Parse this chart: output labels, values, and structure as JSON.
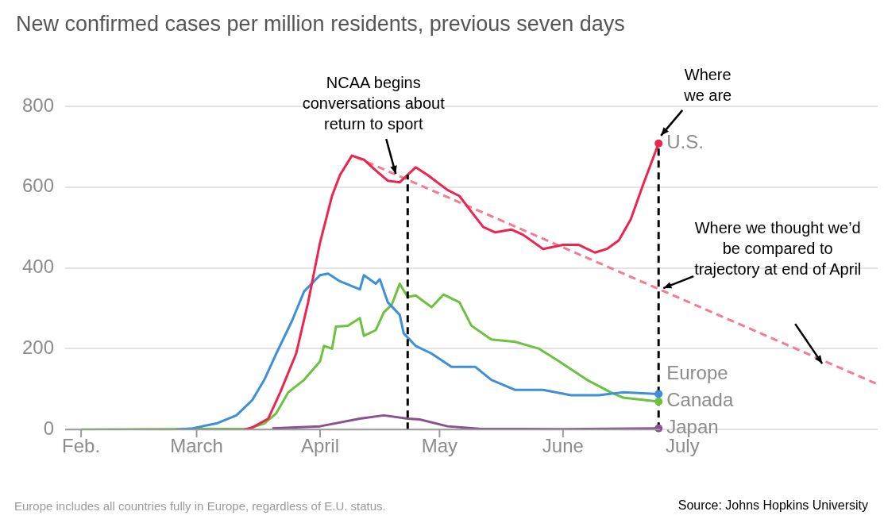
{
  "chart_data": {
    "type": "line",
    "title": "New confirmed cases per million residents, previous seven days",
    "xlim": [
      "--01-28",
      "--08-19"
    ],
    "xticks": [
      {
        "value": "--02-01",
        "label": "Feb."
      },
      {
        "value": "--03-01",
        "label": "March"
      },
      {
        "value": "--04-01",
        "label": "April"
      },
      {
        "value": "--05-01",
        "label": "May"
      },
      {
        "value": "--06-01",
        "label": "June"
      },
      {
        "value": "--07-01",
        "label": "July"
      }
    ],
    "ylim": [
      0,
      800
    ],
    "yticks": [
      0,
      200,
      400,
      600,
      800
    ],
    "grid": "y",
    "legend": false,
    "line_style": "solid",
    "series": [
      {
        "name": "U.S.",
        "color": "#ee2350",
        "x": [
          "--03-13",
          "--03-15",
          "--03-19",
          "--03-22",
          "--03-26",
          "--03-29",
          "--04-01",
          "--04-04",
          "--04-06",
          "--04-09",
          "--04-12",
          "--04-15",
          "--04-18",
          "--04-21",
          "--04-25",
          "--04-28",
          "--05-03",
          "--05-06",
          "--05-09",
          "--05-12",
          "--05-15",
          "--05-19",
          "--05-22",
          "--05-27",
          "--06-01",
          "--06-05",
          "--06-09",
          "--06-12",
          "--06-15",
          "--06-18",
          "--06-21",
          "--06-25"
        ],
        "values": [
          0,
          5,
          27,
          92,
          188,
          315,
          463,
          578,
          630,
          678,
          668,
          641,
          616,
          612,
          649,
          630,
          593,
          578,
          539,
          501,
          488,
          495,
          482,
          447,
          457,
          457,
          438,
          447,
          468,
          520,
          603,
          708
        ]
      },
      {
        "name": "Europe",
        "color": "#3d8fd8",
        "x": [
          "--02-25",
          "--02-29",
          "--03-06",
          "--03-11",
          "--03-15",
          "--03-18",
          "--03-21",
          "--03-25",
          "--03-28",
          "--04-01",
          "--04-03",
          "--04-06",
          "--04-11",
          "--04-12",
          "--04-15",
          "--04-16",
          "--04-18",
          "--04-21",
          "--04-22",
          "--04-25",
          "--04-29",
          "--05-04",
          "--05-10",
          "--05-14",
          "--05-20",
          "--05-27",
          "--06-03",
          "--06-10",
          "--06-16",
          "--06-25"
        ],
        "values": [
          0,
          3,
          15,
          35,
          73,
          123,
          188,
          270,
          342,
          382,
          386,
          367,
          347,
          382,
          361,
          372,
          315,
          284,
          238,
          207,
          188,
          155,
          155,
          123,
          98,
          98,
          85,
          85,
          92,
          88
        ]
      },
      {
        "name": "Canada",
        "color": "#6cc23e",
        "x": [
          "--02-01",
          "--03-14",
          "--03-18",
          "--03-21",
          "--03-24",
          "--03-28",
          "--04-01",
          "--04-02",
          "--04-04",
          "--04-05",
          "--04-08",
          "--04-11",
          "--04-12",
          "--04-15",
          "--04-17",
          "--04-19",
          "--04-21",
          "--04-23",
          "--04-25",
          "--04-29",
          "--05-02",
          "--05-06",
          "--05-09",
          "--05-14",
          "--05-20",
          "--05-26",
          "--05-31",
          "--06-07",
          "--06-13",
          "--06-16",
          "--06-25"
        ],
        "values": [
          0,
          2,
          15,
          40,
          92,
          123,
          169,
          207,
          200,
          255,
          257,
          276,
          232,
          246,
          290,
          309,
          361,
          328,
          332,
          303,
          334,
          315,
          257,
          223,
          217,
          200,
          169,
          123,
          92,
          79,
          69
        ]
      },
      {
        "name": "Japan",
        "color": "#8b4f92",
        "x": [
          "--03-20",
          "--04-01",
          "--04-11",
          "--04-17",
          "--04-23",
          "--04-26",
          "--05-03",
          "--05-11",
          "--06-01",
          "--06-25"
        ],
        "values": [
          3,
          8,
          27,
          35,
          27,
          25,
          8,
          2,
          1,
          3
        ]
      },
      {
        "color": "#f37b92",
        "line_style": "dashed",
        "x": [
          "--04-10",
          "--08-19"
        ],
        "values": [
          674,
          112
        ]
      }
    ],
    "ref_lines": [
      {
        "axis": "x",
        "value": "--04-23",
        "color": "#000000",
        "line_style": "dashed"
      },
      {
        "axis": "x",
        "value": "--06-25",
        "color": "#000000",
        "line_style": "dashed"
      }
    ],
    "annotations": [
      {
        "text": "NCAA begins conversations about return to sport",
        "x": "--04-20",
        "y": 625
      },
      {
        "text": "Where we are",
        "x": "--06-25",
        "y": 708
      },
      {
        "text": "Where we thought we’d be compared to trajectory at end of April",
        "x": "--06-25",
        "y": 344
      },
      "Europe includes all countries fully in Europe, regardless of E.U. status.",
      "Source: Johns Hopkins University"
    ]
  }
}
